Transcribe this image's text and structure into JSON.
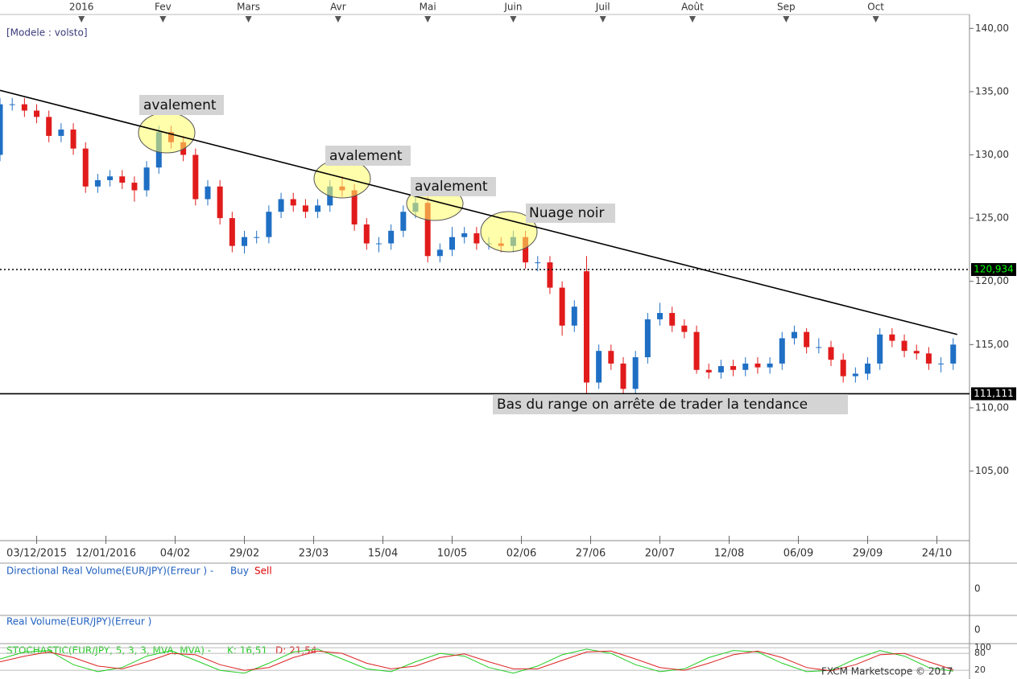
{
  "chart_data": [
    {
      "type": "candlestick",
      "subtitle": "[Modele : volsto]",
      "up_color": "#1f6fc4",
      "down_color": "#e11b1b",
      "xlim": [
        0,
        238
      ],
      "ylim": [
        99.5,
        141.1
      ],
      "xticks": [
        {
          "value": 9,
          "label": "03/12/2015"
        },
        {
          "value": 26,
          "label": "12/01/2016"
        },
        {
          "value": 43,
          "label": "04/02"
        },
        {
          "value": 60,
          "label": "29/02"
        },
        {
          "value": 77,
          "label": "23/03"
        },
        {
          "value": 94,
          "label": "15/04"
        },
        {
          "value": 111,
          "label": "10/05"
        },
        {
          "value": 128,
          "label": "02/06"
        },
        {
          "value": 145,
          "label": "27/06"
        },
        {
          "value": 162,
          "label": "20/07"
        },
        {
          "value": 179,
          "label": "12/08"
        },
        {
          "value": 196,
          "label": "06/09"
        },
        {
          "value": 213,
          "label": "29/09"
        },
        {
          "value": 230,
          "label": "24/10"
        }
      ],
      "top_ticks": [
        {
          "value": 20,
          "label": "2016"
        },
        {
          "value": 40,
          "label": "Fev"
        },
        {
          "value": 61,
          "label": "Mars"
        },
        {
          "value": 83,
          "label": "Avr"
        },
        {
          "value": 105,
          "label": "Mai"
        },
        {
          "value": 126,
          "label": "Juin"
        },
        {
          "value": 148,
          "label": "Juil"
        },
        {
          "value": 170,
          "label": "Août"
        },
        {
          "value": 193,
          "label": "Sep"
        },
        {
          "value": 215,
          "label": "Oct"
        }
      ],
      "yticks": [
        {
          "value": 105,
          "label": "105,00"
        },
        {
          "value": 110,
          "label": "110,00"
        },
        {
          "value": 115,
          "label": "115,00"
        },
        {
          "value": 120,
          "label": "120,00"
        },
        {
          "value": 125,
          "label": "125,00"
        },
        {
          "value": 130,
          "label": "130,00"
        },
        {
          "value": 135,
          "label": "135,00"
        },
        {
          "value": 140,
          "label": "140,00"
        }
      ],
      "x": [
        0,
        3,
        6,
        9,
        12,
        15,
        18,
        21,
        24,
        27,
        30,
        33,
        36,
        39,
        42,
        45,
        48,
        51,
        54,
        57,
        60,
        63,
        66,
        69,
        72,
        75,
        78,
        81,
        84,
        87,
        90,
        93,
        96,
        99,
        102,
        105,
        108,
        111,
        114,
        117,
        120,
        123,
        126,
        129,
        132,
        135,
        138,
        141,
        144,
        147,
        150,
        153,
        156,
        159,
        162,
        165,
        168,
        171,
        174,
        177,
        180,
        183,
        186,
        189,
        192,
        195,
        198,
        201,
        204,
        207,
        210,
        213,
        216,
        219,
        222,
        225,
        228,
        231,
        234
      ],
      "open": [
        130,
        134,
        134,
        133.5,
        133,
        131.5,
        132,
        130.5,
        127.5,
        128,
        128.3,
        127.8,
        127.2,
        129,
        131.8,
        131,
        130,
        126.5,
        127.5,
        125,
        122.8,
        123.5,
        123.5,
        125.5,
        126.5,
        126,
        125.5,
        126,
        127.5,
        127.2,
        124.5,
        123,
        123,
        124,
        125.5,
        126.2,
        122,
        122.5,
        123.5,
        123.8,
        123,
        123,
        122.8,
        123.5,
        121.5,
        121.5,
        119.5,
        116.5,
        120.8,
        112,
        114.5,
        113.5,
        111.5,
        114,
        117,
        117.5,
        116.5,
        116,
        113,
        112.8,
        113.3,
        113,
        113.5,
        113.2,
        113.5,
        115.5,
        116,
        114.8,
        114.8,
        113.8,
        112.5,
        112.7,
        113.5,
        115.8,
        115.3,
        114.5,
        114.3,
        113.5,
        113.5
      ],
      "high": [
        134.5,
        134.5,
        134.5,
        134,
        133.5,
        132.5,
        132.5,
        131,
        128.5,
        128.8,
        128.8,
        128.3,
        129.5,
        132.3,
        132.3,
        131.5,
        130.5,
        128,
        128,
        125.5,
        124,
        124,
        126,
        127,
        127,
        126.5,
        126.5,
        128,
        128.3,
        127.7,
        125,
        123.5,
        124.5,
        126,
        126.8,
        126.7,
        123,
        124.3,
        124.3,
        124.3,
        123.5,
        123.5,
        124,
        124,
        122,
        122,
        120,
        118.5,
        122,
        115,
        115,
        114,
        114.5,
        117.5,
        118.3,
        118,
        117,
        116.5,
        113.5,
        113.8,
        113.8,
        114,
        114,
        114,
        116,
        116.5,
        116.3,
        115.5,
        115.3,
        114.3,
        113.2,
        114,
        116.3,
        116.3,
        115.8,
        115,
        114.8,
        114,
        115.5
      ],
      "low": [
        129.5,
        133.5,
        133,
        132.5,
        131,
        131,
        130,
        127,
        127,
        127.5,
        127.3,
        126.3,
        126.7,
        128.5,
        130.5,
        129.5,
        126,
        126,
        124.5,
        122.3,
        122.2,
        123,
        123,
        125,
        125.5,
        125,
        125,
        125.5,
        126.7,
        124,
        122.5,
        122.3,
        122.5,
        123.5,
        125,
        121.5,
        121.5,
        122,
        123,
        122.5,
        122.5,
        122.3,
        122.3,
        121,
        120.8,
        119,
        115.7,
        116,
        110.8,
        111.5,
        113,
        110.8,
        111,
        113.5,
        116.5,
        116,
        115.5,
        112.7,
        112.3,
        112.3,
        112.5,
        112.5,
        112.7,
        112.7,
        113,
        115,
        114.3,
        114.3,
        113.3,
        112,
        112,
        112.2,
        113,
        114.8,
        114,
        113.8,
        113,
        112.8,
        113
      ],
      "close": [
        134,
        134,
        133.5,
        133,
        131.5,
        132,
        130.5,
        127.5,
        128,
        128.3,
        127.8,
        127.2,
        129,
        131.8,
        131,
        130,
        126.5,
        127.5,
        125,
        122.8,
        123.5,
        123.5,
        125.5,
        126.5,
        126,
        125.5,
        126,
        127.5,
        127.2,
        124.5,
        123,
        123,
        124,
        125.5,
        126.2,
        122,
        122.5,
        123.5,
        123.8,
        123,
        123,
        122.8,
        123.5,
        121.5,
        121.5,
        119.5,
        116.5,
        118,
        112,
        114.5,
        113.5,
        111.5,
        114,
        117,
        117.5,
        116.5,
        116,
        113,
        112.8,
        113.3,
        113,
        113.5,
        113.2,
        113.5,
        115.5,
        116,
        114.8,
        114.8,
        113.8,
        112.5,
        112.7,
        113.5,
        115.8,
        115.3,
        114.5,
        114.3,
        113.5,
        113.5,
        115
      ],
      "trendline": {
        "x": [
          0,
          235
        ],
        "y": [
          135.1,
          115.8
        ]
      },
      "levels": [
        {
          "value": 120.934,
          "label": "120,934",
          "style": "dotted",
          "label_color": "#00ff00"
        },
        {
          "value": 111.111,
          "label": "111,111",
          "style": "solid",
          "label_color": "#ffffff"
        }
      ],
      "annotations": [
        "avalement",
        "avalement",
        "avalement",
        "Nuage noir",
        "Bas du range on arrête de trader la tendance"
      ]
    },
    {
      "type": "bar",
      "title": "Directional Real Volume(EUR/JPY)(Erreur ) -",
      "yticks": [
        0
      ],
      "series": [
        {
          "name": "Buy",
          "color": "#1f5fbf"
        },
        {
          "name": "Sell",
          "color": "#e00000"
        }
      ]
    },
    {
      "type": "bar",
      "title": "Real Volume(EUR/JPY)(Erreur )",
      "yticks": [
        0
      ]
    },
    {
      "type": "line",
      "title": "STOCHASTIC(EUR/JPY, 5, 3, 3, MVA, MVA) -",
      "xlim": [
        0,
        238
      ],
      "ylim": [
        -8,
        106
      ],
      "yticks": [
        100,
        80,
        20
      ],
      "x": [
        0,
        6,
        12,
        18,
        24,
        30,
        36,
        42,
        48,
        54,
        60,
        66,
        72,
        78,
        84,
        90,
        96,
        102,
        108,
        114,
        120,
        126,
        132,
        138,
        144,
        150,
        156,
        162,
        168,
        174,
        180,
        186,
        192,
        198,
        204,
        210,
        216,
        222,
        228,
        234
      ],
      "series": [
        {
          "name": "K: 16,51",
          "color": "#22cc22",
          "values": [
            60,
            85,
            90,
            40,
            15,
            30,
            70,
            90,
            55,
            20,
            10,
            45,
            85,
            95,
            60,
            25,
            15,
            50,
            80,
            70,
            30,
            10,
            35,
            75,
            95,
            80,
            40,
            15,
            25,
            65,
            90,
            85,
            45,
            15,
            20,
            60,
            90,
            70,
            30,
            17
          ]
        },
        {
          "name": "D: 21,54",
          "color": "#dd2222",
          "values": [
            50,
            70,
            85,
            65,
            35,
            25,
            50,
            80,
            75,
            40,
            20,
            30,
            65,
            88,
            80,
            45,
            25,
            35,
            65,
            78,
            50,
            25,
            25,
            55,
            85,
            88,
            60,
            30,
            20,
            45,
            75,
            88,
            65,
            30,
            18,
            40,
            75,
            80,
            50,
            22
          ]
        }
      ]
    }
  ],
  "footer": "FXCM Marketscope © 2017"
}
